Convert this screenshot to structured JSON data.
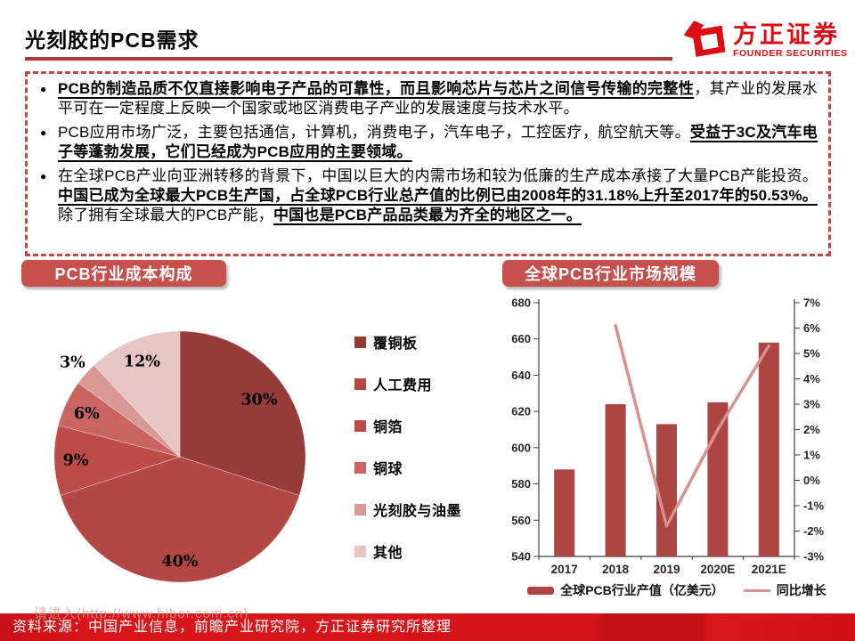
{
  "header": {
    "title": "光刻胶的PCB需求",
    "logo": {
      "name_cn": "方正证券",
      "name_en": "FOUNDER SECURITIES"
    }
  },
  "bullets": [
    {
      "segments": [
        {
          "text": "PCB的制造品质不仅直接影响电子产品的可靠性，而且影响芯片与芯片之间信号传输的完整性",
          "emphasis": true
        },
        {
          "text": "，其产业的发展水平可在一定程度上反映一个国家或地区消费电子产业的发展速度与技术水平。",
          "emphasis": false
        }
      ]
    },
    {
      "segments": [
        {
          "text": "PCB应用市场广泛，主要包括通信，计算机，消费电子，汽车电子，工控医疗，航空航天等。",
          "emphasis": false
        },
        {
          "text": "受益于3C及汽车电子等蓬勃发展，它们已经成为PCB应用的主要领域。",
          "emphasis": true
        }
      ]
    },
    {
      "segments": [
        {
          "text": "在全球PCB产业向亚洲转移的背景下，中国以巨大的内需市场和较为低廉的生产成本承接了大量PCB产能投资。",
          "emphasis": false
        },
        {
          "text": "中国已成为全球最大PCB生产国，占全球PCB行业总产值的比例已由2008年的31.18%上升至2017年的50.53%。",
          "emphasis": true
        },
        {
          "text": "除了拥有全球最大的PCB产能，",
          "emphasis": false
        },
        {
          "text": "中国也是PCB产品品类最为齐全的地区之一。",
          "emphasis": true
        }
      ]
    }
  ],
  "sections": {
    "pie_title": "PCB行业成本构成",
    "bar_title": "全球PCB行业市场规模"
  },
  "chart_data": [
    {
      "type": "pie",
      "title": "PCB行业成本构成",
      "labels": [
        "覆铜板",
        "人工费用",
        "铜箔",
        "铜球",
        "光刻胶与油墨",
        "其他"
      ],
      "values": [
        30,
        40,
        9,
        6,
        3,
        12
      ],
      "value_labels": [
        "30%",
        "40%",
        "9%",
        "6%",
        "3%",
        "12%"
      ],
      "colors": [
        "#953B38",
        "#B34744",
        "#BD4B48",
        "#C96461",
        "#D89896",
        "#E7C5C3"
      ],
      "label_radius": [
        0.78,
        0.83,
        0.83,
        0.82,
        1.14,
        0.82
      ],
      "start_angle_deg": 0,
      "direction": "clockwise",
      "legend_position": "right"
    },
    {
      "type": "bar+line",
      "title": "全球PCB行业市场规模",
      "categories": [
        "2017",
        "2018",
        "2019",
        "2020E",
        "2021E"
      ],
      "series": [
        {
          "name": "全球PCB行业产值（亿美元）",
          "type": "bar",
          "axis": "left",
          "color": "#AD4543",
          "values": [
            588,
            624,
            613,
            625,
            658
          ]
        },
        {
          "name": "同比增长",
          "type": "line",
          "axis": "right",
          "color": "#D9908E",
          "values": [
            null,
            6.1,
            -1.8,
            2.0,
            5.3
          ]
        }
      ],
      "left_axis": {
        "min": 540,
        "max": 680,
        "step": 20
      },
      "right_axis": {
        "min": -3,
        "max": 7,
        "step": 1,
        "suffix": "%"
      },
      "grid": false,
      "legend_position": "bottom"
    }
  ],
  "footer": {
    "source": "资料来源：中国产业信息，前瞻产业研究院，方正证券研究所整理",
    "watermark": "请进入(http://www.hibor.com.cn)"
  },
  "colors": {
    "accent_dark_red": "#A93A37",
    "dashed_border": "#BF4B48",
    "pill_bg": "#C5504C",
    "logo_red": "#DE0A14",
    "footer_red": "#D5151B",
    "bar": "#AD4543",
    "line": "#D9908E",
    "text": "#000000"
  }
}
